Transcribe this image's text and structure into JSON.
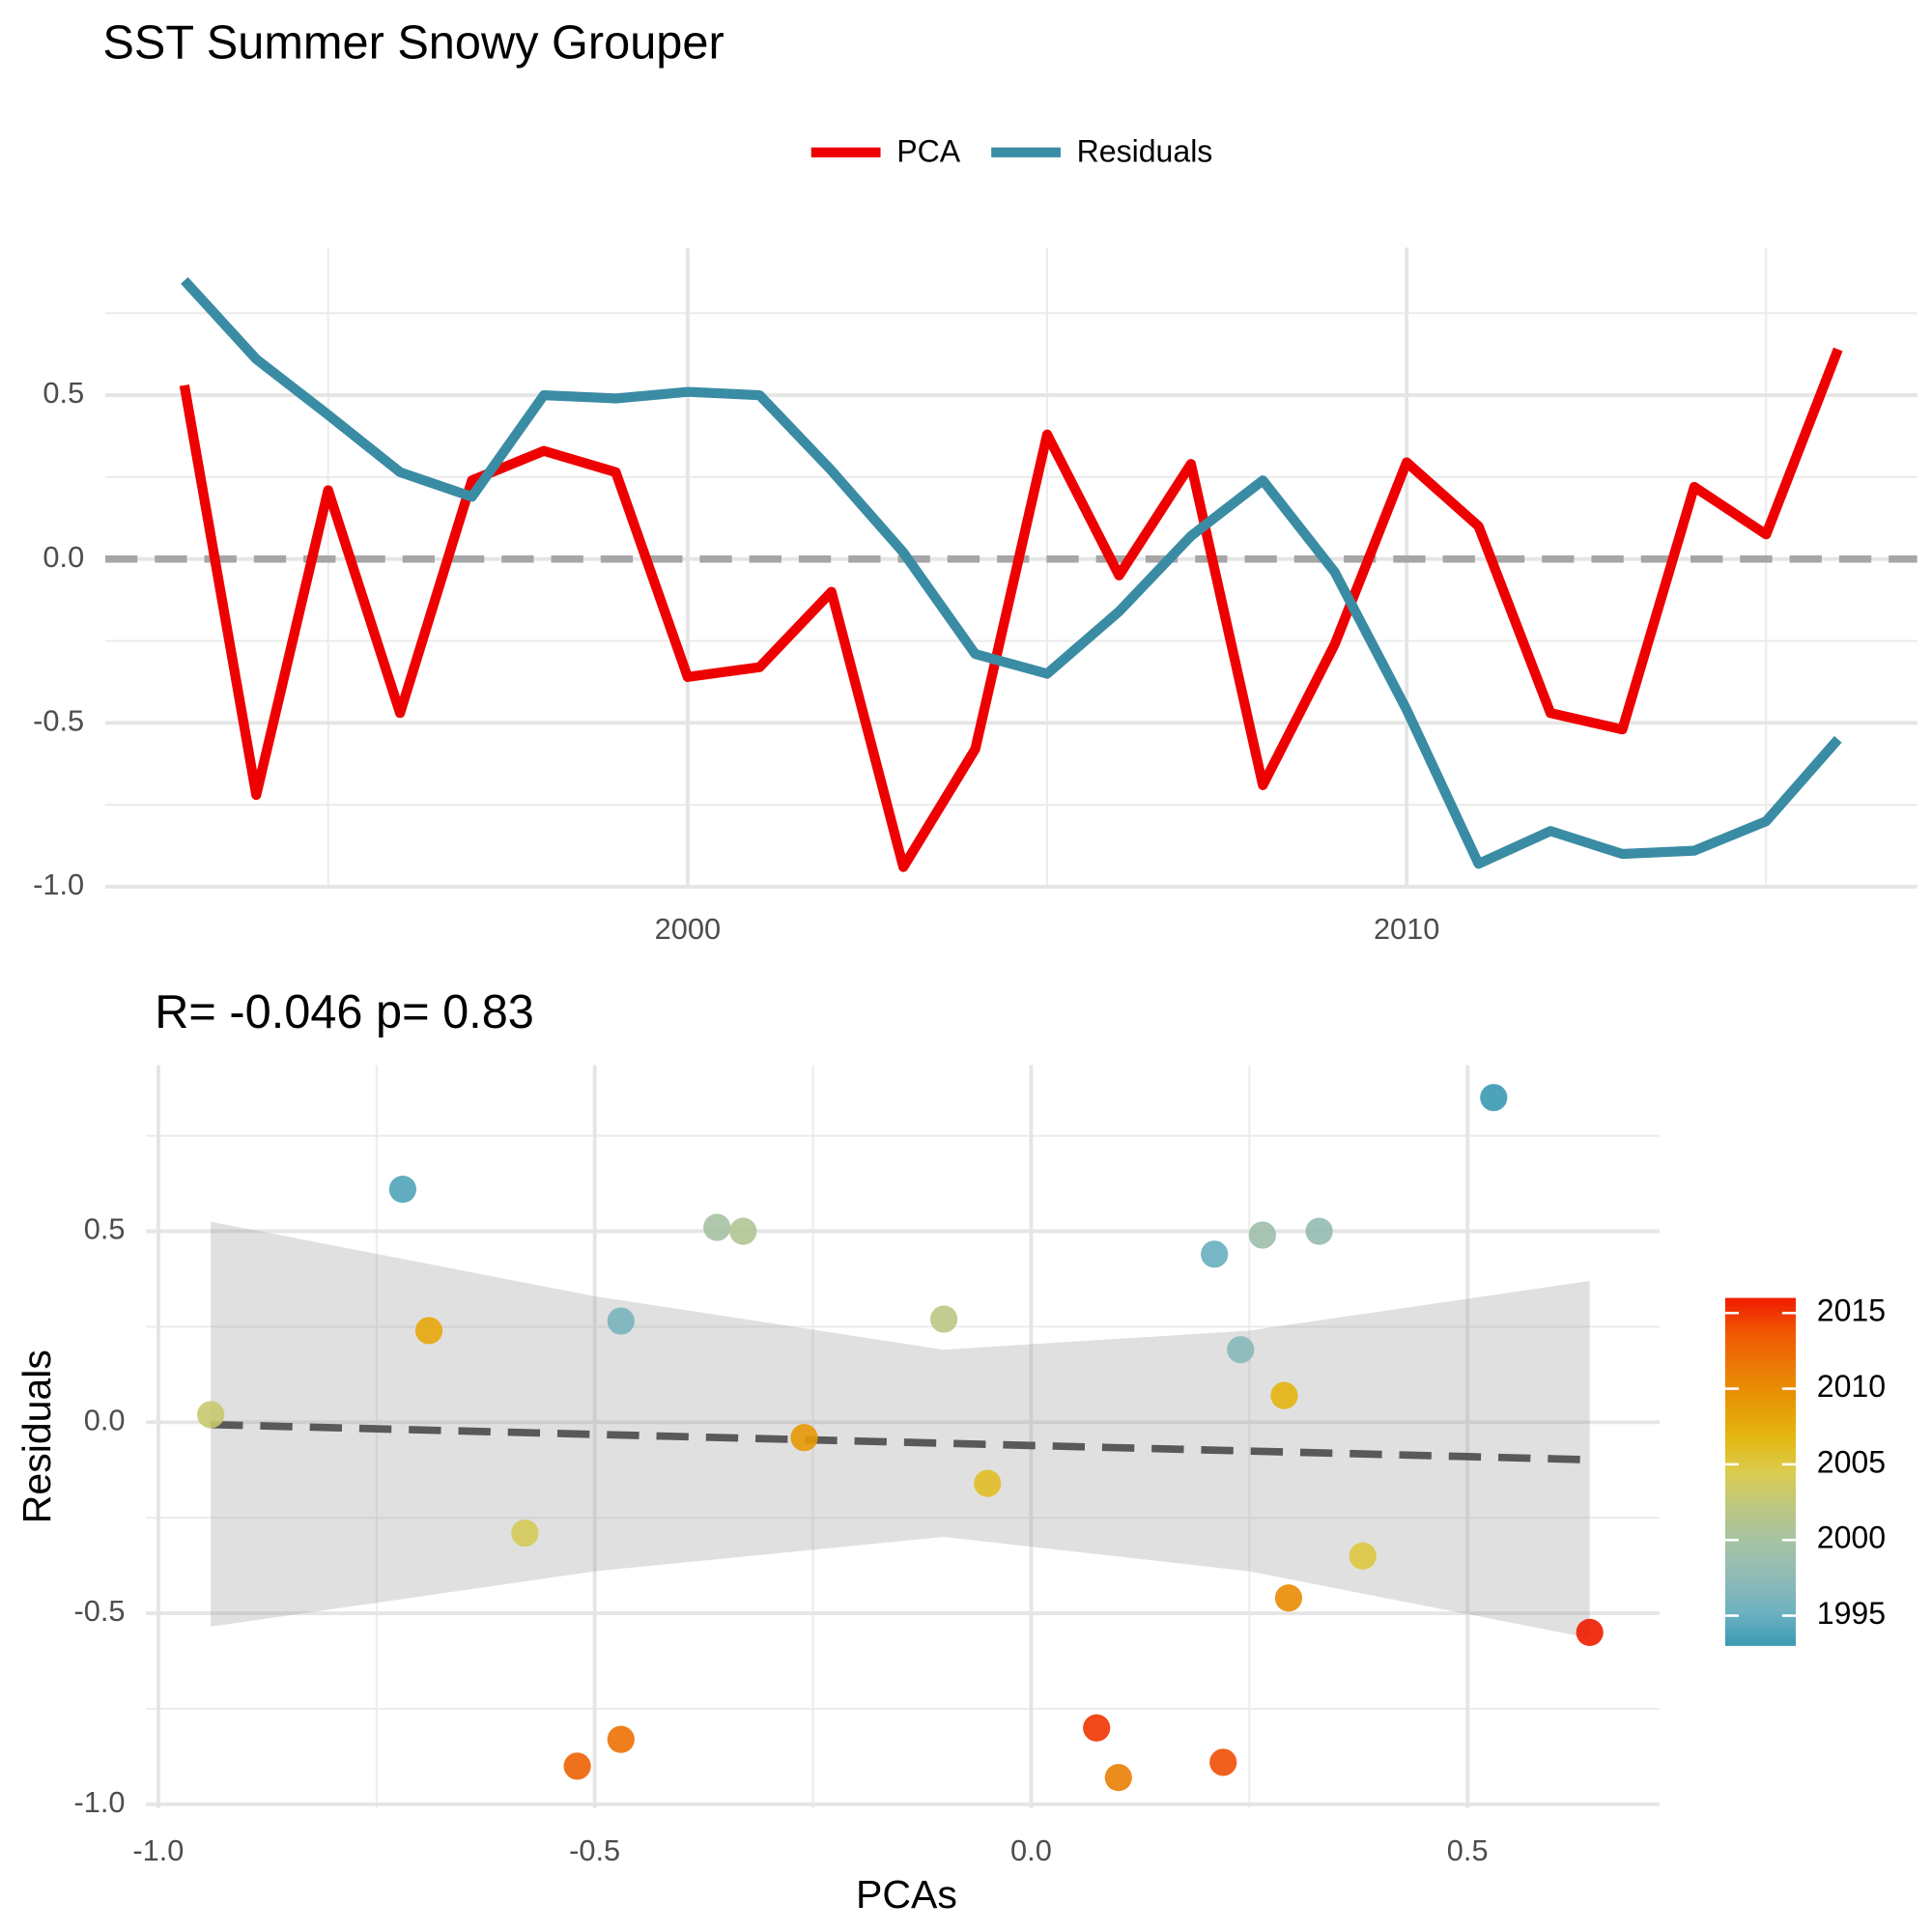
{
  "chart_data": [
    {
      "type": "line",
      "title": "SST Summer Snowy Grouper",
      "x": [
        1993,
        1994,
        1995,
        1996,
        1997,
        1998,
        1999,
        2000,
        2001,
        2002,
        2003,
        2004,
        2005,
        2006,
        2007,
        2008,
        2009,
        2010,
        2011,
        2012,
        2013,
        2014,
        2015,
        2016
      ],
      "series": [
        {
          "name": "PCA",
          "color": "#EE0000",
          "values": [
            0.53,
            -0.72,
            0.21,
            -0.47,
            0.24,
            0.33,
            0.265,
            -0.36,
            -0.33,
            -0.1,
            -0.94,
            -0.58,
            0.38,
            -0.05,
            0.29,
            -0.69,
            -0.26,
            0.295,
            0.1,
            -0.47,
            -0.52,
            0.22,
            0.075,
            0.64
          ]
        },
        {
          "name": "Residuals",
          "color": "#3A8CA4",
          "values": [
            0.85,
            0.61,
            0.44,
            0.265,
            0.19,
            0.5,
            0.49,
            0.51,
            0.5,
            0.27,
            0.02,
            -0.29,
            -0.35,
            -0.16,
            0.07,
            0.24,
            -0.04,
            -0.46,
            -0.93,
            -0.83,
            -0.9,
            -0.89,
            -0.8,
            -0.55
          ]
        }
      ],
      "xlim": [
        1991.9,
        2017.1
      ],
      "xticks": [
        2000,
        2010
      ],
      "ylim": [
        -1.0,
        0.95
      ],
      "yticks": [
        {
          "value": -1.0,
          "label": "-1.0"
        },
        -0.5,
        {
          "value": 0,
          "label": "0.0"
        },
        0.5
      ],
      "hline": 0,
      "grid": true,
      "legend": "top"
    },
    {
      "type": "scatter",
      "subtitle": "R= -0.046  p= 0.83",
      "x_label": "PCAs",
      "y_label": "Residuals",
      "x": [
        0.53,
        -0.72,
        0.21,
        -0.47,
        0.24,
        0.33,
        0.265,
        -0.36,
        -0.33,
        -0.1,
        -0.94,
        -0.58,
        0.38,
        -0.05,
        0.29,
        -0.69,
        -0.26,
        0.295,
        0.1,
        -0.47,
        -0.52,
        0.22,
        0.075,
        0.64
      ],
      "y": [
        0.85,
        0.61,
        0.44,
        0.265,
        0.19,
        0.5,
        0.49,
        0.51,
        0.5,
        0.27,
        0.02,
        -0.29,
        -0.35,
        -0.16,
        0.07,
        0.24,
        -0.04,
        -0.46,
        -0.93,
        -0.83,
        -0.9,
        -0.89,
        -0.8,
        -0.55
      ],
      "color_values": [
        1993,
        1994,
        1995,
        1996,
        1997,
        1998,
        1999,
        2000,
        2001,
        2002,
        2003,
        2004,
        2005,
        2006,
        2007,
        2008,
        2009,
        2010,
        2011,
        2012,
        2013,
        2014,
        2015,
        2016
      ],
      "colors": [
        "#3A9AB2",
        "#6FB2C1",
        "#91BAB6",
        "#A5C2A3",
        "#BDC881",
        "#DCCB4E",
        "#E3B710",
        "#E79805",
        "#EC7A05",
        "#EF5703",
        "#F11B00"
      ],
      "color_lim": [
        1993,
        2016
      ],
      "color_ticks": [
        1995,
        2000,
        2005,
        2010,
        2015
      ],
      "fit_line": {
        "x": [
          -0.94,
          0.64
        ],
        "y": [
          -0.006,
          -0.098
        ]
      },
      "ci_band": {
        "x": [
          -0.94,
          -0.5,
          -0.1,
          0.25,
          0.64
        ],
        "lower": [
          -0.535,
          -0.39,
          -0.3,
          -0.39,
          -0.565
        ],
        "upper": [
          0.525,
          0.33,
          0.19,
          0.24,
          0.37
        ]
      },
      "xlim": [
        -1.014,
        0.72
      ],
      "xticks": [
        {
          "value": -1.0,
          "label": "-1.0"
        },
        -0.5,
        {
          "value": 0,
          "label": "0.0"
        },
        0.5
      ],
      "ylim": [
        -1.01,
        0.935
      ],
      "yticks": [
        {
          "value": -1.0,
          "label": "-1.0"
        },
        -0.5,
        {
          "value": 0,
          "label": "0.0"
        },
        0.5
      ],
      "grid": true
    }
  ]
}
